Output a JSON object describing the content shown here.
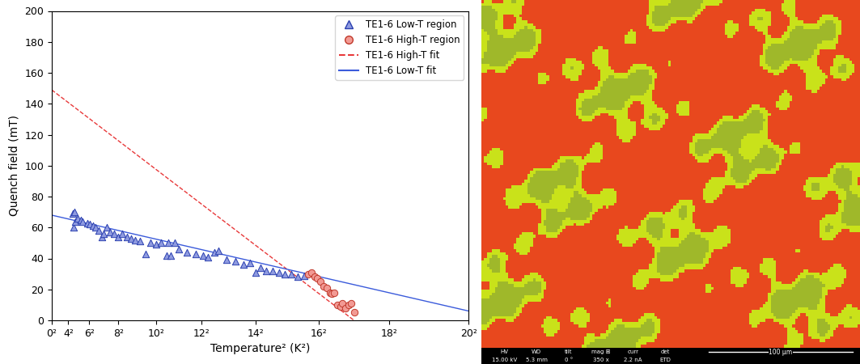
{
  "chart_data": {
    "type": "scatter",
    "x_label": "Temperature² (K²)",
    "y_label": "Quench field (mT)",
    "xlim": [
      0,
      400
    ],
    "ylim": [
      0,
      200
    ],
    "xticks": [
      {
        "value": 0,
        "label": "0²"
      },
      {
        "value": 16,
        "label": "4²"
      },
      {
        "value": 36,
        "label": "6²"
      },
      {
        "value": 64,
        "label": "8²"
      },
      {
        "value": 100,
        "label": "10²"
      },
      {
        "value": 144,
        "label": "12²"
      },
      {
        "value": 196,
        "label": "14²"
      },
      {
        "value": 256,
        "label": "16²"
      },
      {
        "value": 324,
        "label": "18²"
      },
      {
        "value": 400,
        "label": "20²"
      }
    ],
    "yticks": [
      0,
      20,
      40,
      60,
      80,
      100,
      120,
      140,
      160,
      180,
      200
    ],
    "legend": "upper right",
    "series": [
      {
        "name": "TE1-6 Low-T region",
        "type": "scatter",
        "marker": "triangle",
        "color": "#8f9be0",
        "x": [
          20,
          21,
          22,
          23,
          25,
          28,
          30,
          34,
          37,
          40,
          42,
          45,
          48,
          50,
          53,
          56,
          60,
          64,
          68,
          72,
          76,
          80,
          85,
          90,
          95,
          100,
          105,
          110,
          112,
          114,
          118,
          122,
          130,
          138,
          145,
          150,
          156,
          160,
          168,
          176,
          184,
          190,
          196,
          200,
          206,
          212,
          218,
          224,
          230,
          236,
          242
        ],
        "values": [
          69,
          60,
          70,
          64,
          66,
          65,
          64,
          63,
          62,
          61,
          60,
          58,
          54,
          56,
          60,
          57,
          56,
          54,
          56,
          54,
          53,
          52,
          51,
          43,
          50,
          49,
          50,
          42,
          50,
          42,
          50,
          46,
          44,
          43,
          42,
          41,
          44,
          45,
          39,
          38,
          36,
          37,
          31,
          34,
          32,
          32,
          31,
          30,
          30,
          28,
          29
        ]
      },
      {
        "name": "TE1-6 High-T region",
        "type": "scatter",
        "marker": "circle",
        "color": "#f29a94",
        "x": [
          246,
          249,
          252,
          255,
          258,
          261,
          264,
          267,
          269,
          271,
          274,
          277,
          279,
          282,
          285,
          287,
          290
        ],
        "values": [
          30,
          31,
          28,
          27,
          25,
          22,
          21,
          18,
          17,
          18,
          10,
          9,
          11,
          8,
          10,
          11,
          5
        ]
      },
      {
        "name": "TE1-6 High-T fit",
        "type": "line",
        "line_style": "dashed",
        "color": "#e8393a",
        "x": [
          0,
          290
        ],
        "values": [
          149,
          0
        ]
      },
      {
        "name": "TE1-6 Low-T fit",
        "type": "line",
        "line_style": "solid",
        "color": "#3b5bdb",
        "x": [
          0,
          400
        ],
        "values": [
          68,
          6
        ]
      }
    ]
  },
  "image_panel": {
    "info_bar": {
      "headers": [
        "HV",
        "WD",
        "tilt",
        "mag ⊞",
        "curr",
        "det"
      ],
      "values": [
        "15.00 kV",
        "5.3 mm",
        "0 °",
        "350 x",
        "2.2 nA",
        "ETD"
      ]
    },
    "scale_bar": "100 µm"
  }
}
